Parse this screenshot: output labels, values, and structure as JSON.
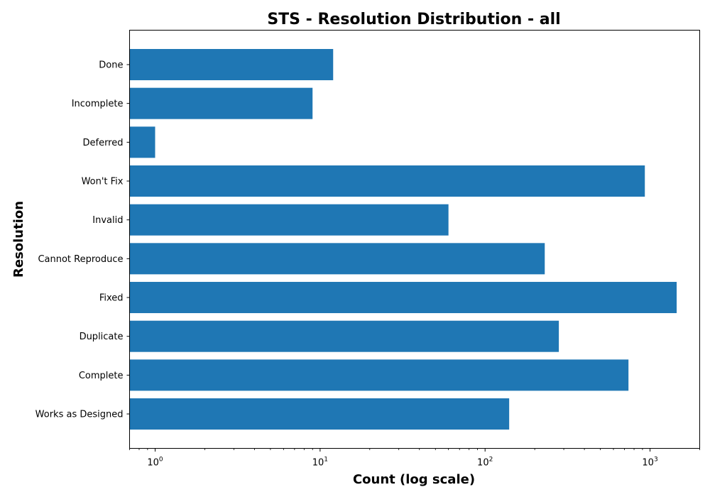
{
  "chart_data": {
    "type": "bar",
    "orientation": "horizontal",
    "title": "STS - Resolution Distribution - all",
    "xlabel": "Count (log scale)",
    "ylabel": "Resolution",
    "x_scale": "log",
    "xlim": [
      0.7,
      2000
    ],
    "categories": [
      "Done",
      "Incomplete",
      "Deferred",
      "Won't Fix",
      "Invalid",
      "Cannot Reproduce",
      "Fixed",
      "Duplicate",
      "Complete",
      "Works as Designed"
    ],
    "values": [
      12,
      9,
      1,
      930,
      60,
      230,
      1450,
      280,
      740,
      140
    ],
    "x_ticks": [
      {
        "base": "10",
        "exp": "0",
        "value": 1
      },
      {
        "base": "10",
        "exp": "1",
        "value": 10
      },
      {
        "base": "10",
        "exp": "2",
        "value": 100
      },
      {
        "base": "10",
        "exp": "3",
        "value": 1000
      }
    ],
    "bar_color": "#1f77b4",
    "grid": false,
    "legend": "none"
  }
}
